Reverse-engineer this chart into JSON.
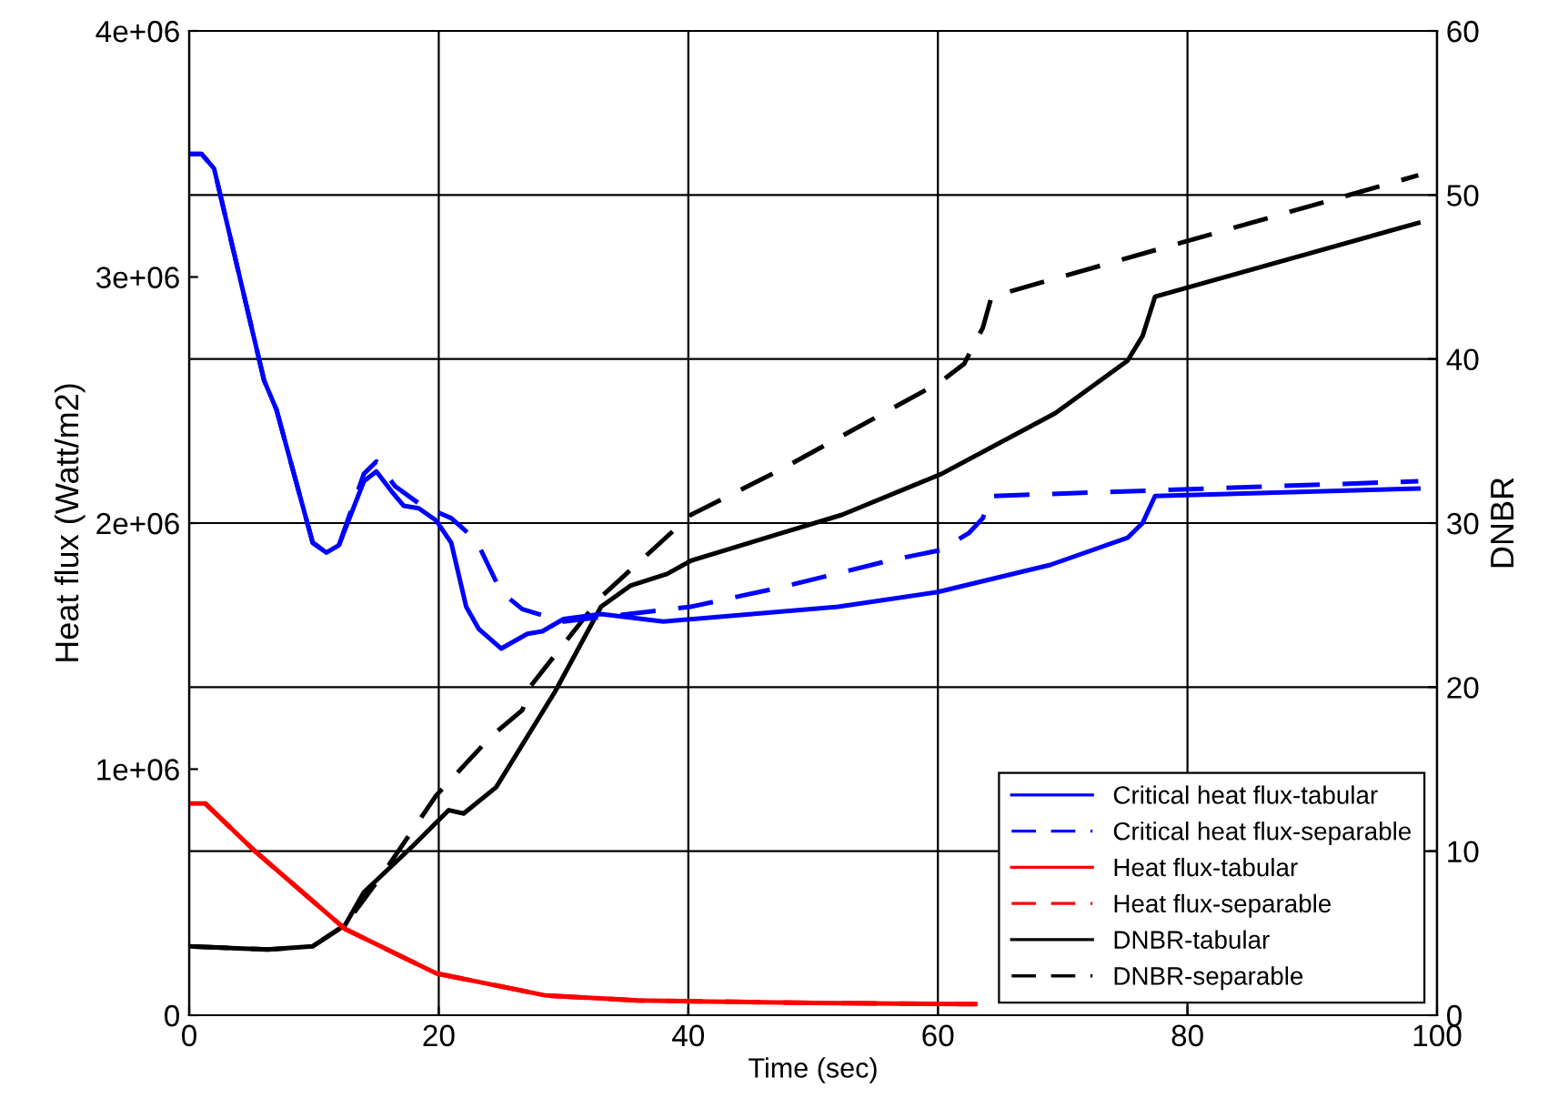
{
  "chart_data": {
    "type": "line",
    "xlabel": "Time (sec)",
    "ylabel": "Heat flux (Watt/m2)",
    "y2label": "DNBR",
    "xlim": [
      0,
      100
    ],
    "xticks": [
      0,
      20,
      40,
      60,
      80,
      100
    ],
    "ylim": [
      0,
      4000000
    ],
    "yticks": [
      0,
      {
        "value": 1000000,
        "label": "1e+06"
      },
      {
        "value": 2000000,
        "label": "2e+06"
      },
      {
        "value": 3000000,
        "label": "3e+06"
      },
      {
        "value": 4000000,
        "label": "4e+06"
      }
    ],
    "y2lim": [
      0,
      60
    ],
    "y2ticks": [
      0,
      10,
      20,
      30,
      40,
      50,
      60
    ],
    "grid": true,
    "legend": "bottom right",
    "marker": "none",
    "series": [
      {
        "name": "Critical heat flux-tabular",
        "color": "#0000ff",
        "line_style": "solid",
        "x": [
          0,
          1,
          2,
          6,
          7,
          9.9,
          11,
          12,
          14,
          15,
          16.2,
          17.2,
          18.4,
          19.8,
          21,
          22.2,
          23.2,
          25,
          27.1,
          28.3,
          30,
          33,
          38,
          52,
          60,
          69,
          75.2,
          76.4,
          77.4,
          98.5
        ],
        "values": [
          3500000,
          3500000,
          3440000,
          2580000,
          2460000,
          1920000,
          1880000,
          1910000,
          2170000,
          2210000,
          2130000,
          2070000,
          2060000,
          2010000,
          1920000,
          1660000,
          1570000,
          1490000,
          1550000,
          1560000,
          1610000,
          1630000,
          1600000,
          1660000,
          1720000,
          1830000,
          1940000,
          2000000,
          2110000,
          2140000
        ]
      },
      {
        "name": "Critical heat flux-separable",
        "color": "#0000ff",
        "line_style": "dashed",
        "x": [
          0,
          1,
          2,
          6,
          7,
          9.9,
          11,
          12,
          14,
          15,
          16.5,
          18.4,
          20.1,
          21,
          23,
          25,
          26.7,
          30,
          33.4,
          40.2,
          47.5,
          56.3,
          60.2,
          62.5,
          63.6,
          64.3,
          98.5
        ],
        "values": [
          3500000,
          3500000,
          3440000,
          2580000,
          2460000,
          1920000,
          1880000,
          1910000,
          2200000,
          2250000,
          2150000,
          2080000,
          2040000,
          2020000,
          1930000,
          1720000,
          1650000,
          1600000,
          1620000,
          1660000,
          1740000,
          1850000,
          1890000,
          1960000,
          2020000,
          2110000,
          2170000
        ]
      },
      {
        "name": "Heat flux-tabular",
        "color": "#ff0000",
        "line_style": "solid",
        "x": [
          0,
          1.3,
          5.2,
          12.5,
          19.8,
          28.6,
          35.9,
          50,
          63
        ],
        "values": [
          860000,
          860000,
          670000,
          350000,
          170000,
          80000,
          60000,
          50000,
          45000
        ]
      },
      {
        "name": "Heat flux-separable",
        "color": "#ff0000",
        "line_style": "dashed",
        "x": [
          0,
          1.3,
          5.2,
          12.5,
          19.8,
          28.6,
          35.9,
          50,
          63
        ],
        "values": [
          860000,
          860000,
          670000,
          350000,
          170000,
          80000,
          60000,
          50000,
          45000
        ]
      },
      {
        "name": "DNBR-tabular",
        "color": "#000000",
        "line_style": "solid",
        "axis": "y2",
        "x": [
          0,
          6.3,
          9.9,
          12.5,
          14,
          17.9,
          20.8,
          22,
          24.6,
          29.3,
          33,
          35.4,
          38.3,
          40.2,
          47.5,
          52.3,
          60.3,
          69.4,
          75.2,
          76.4,
          77.4,
          98.5
        ],
        "values": [
          4.2,
          4.0,
          4.2,
          5.5,
          7.5,
          10.3,
          12.5,
          12.3,
          13.9,
          19.7,
          24.9,
          26.2,
          26.9,
          27.7,
          29.4,
          30.5,
          33.0,
          36.7,
          39.9,
          41.4,
          43.8,
          48.3
        ]
      },
      {
        "name": "DNBR-separable",
        "color": "#000000",
        "line_style": "dashed",
        "axis": "y2",
        "x": [
          0,
          6.3,
          9.9,
          12.5,
          15.5,
          19.8,
          24.2,
          26.7,
          27.4,
          33,
          40.2,
          47.5,
          60.2,
          62.1,
          63.6,
          64.3,
          98.5
        ],
        "values": [
          4.2,
          4.0,
          4.2,
          5.5,
          8.6,
          13.4,
          17.0,
          18.6,
          20.1,
          25.5,
          30.5,
          33.3,
          38.6,
          39.7,
          41.9,
          43.8,
          51.2
        ]
      }
    ]
  }
}
